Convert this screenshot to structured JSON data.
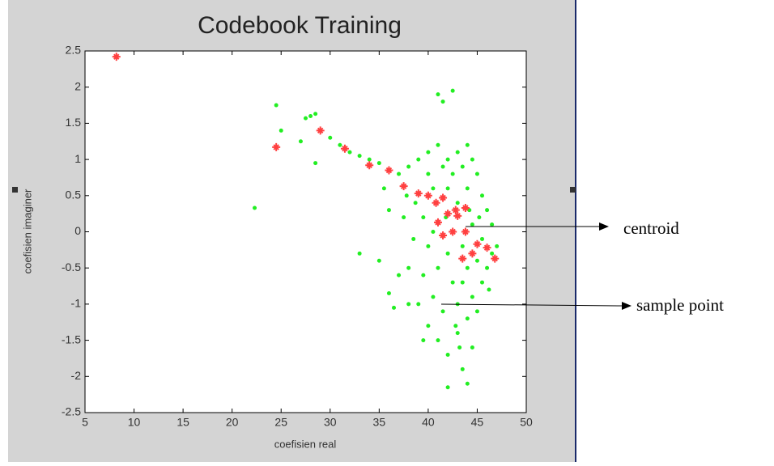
{
  "chart_data": {
    "type": "scatter",
    "title": "Codebook Training",
    "xlabel": "coefisien real",
    "ylabel": "coefisien imaginer",
    "xlim": [
      5,
      50
    ],
    "ylim": [
      -2.5,
      2.5
    ],
    "xticks": [
      5,
      10,
      15,
      20,
      25,
      30,
      35,
      40,
      45,
      50
    ],
    "yticks": [
      -2.5,
      -2,
      -1.5,
      -1,
      -0.5,
      0,
      0.5,
      1,
      1.5,
      2,
      2.5
    ],
    "series": [
      {
        "name": "sample point",
        "color": "#22ee22",
        "x": [
          24.5,
          25,
          22.3,
          27.5,
          28,
          28.5,
          27,
          28.5,
          30,
          31,
          32,
          33,
          34,
          35,
          35.5,
          36,
          37,
          37.5,
          35,
          33,
          36,
          37,
          38,
          38.5,
          38,
          39,
          39,
          39.5,
          39.5,
          40,
          40,
          40,
          40,
          40.5,
          40.5,
          41,
          41,
          41.5,
          41,
          41,
          41.5,
          41.5,
          42,
          42,
          42,
          42,
          42,
          42.5,
          42.5,
          42.5,
          43,
          43,
          43,
          43,
          43.5,
          43.5,
          43.5,
          43.5,
          44,
          44,
          44,
          44,
          44,
          44.5,
          44.5,
          44.5,
          44.5,
          45,
          45,
          45,
          45.5,
          45.5,
          45.5,
          46,
          46,
          46.5,
          46.5,
          47,
          39.5,
          38,
          36.5,
          42.8,
          43.2,
          40.5,
          41.8,
          44.2,
          45.2,
          38.7,
          37.8,
          46.2
        ],
        "y": [
          1.75,
          1.4,
          0.33,
          1.57,
          1.6,
          1.63,
          1.25,
          0.95,
          1.3,
          1.2,
          1.1,
          1.05,
          1.0,
          0.95,
          0.6,
          0.3,
          0.8,
          0.2,
          -0.4,
          -0.3,
          -0.85,
          -0.6,
          0.9,
          -0.1,
          -0.5,
          1.0,
          -1.0,
          0.2,
          -0.6,
          1.1,
          0.8,
          -0.2,
          -1.3,
          0.6,
          -0.9,
          1.2,
          1.9,
          1.8,
          -0.5,
          -1.5,
          0.9,
          -1.1,
          1.0,
          0.6,
          -0.3,
          -1.7,
          -2.15,
          1.95,
          0.8,
          -0.7,
          1.1,
          0.4,
          -1.0,
          -1.4,
          0.9,
          -0.2,
          -0.7,
          -1.9,
          1.2,
          0.6,
          -0.5,
          -1.2,
          -2.1,
          1.0,
          0.1,
          -0.9,
          -1.6,
          0.8,
          -0.4,
          -1.1,
          0.5,
          -0.1,
          -0.7,
          0.3,
          -0.5,
          0.1,
          -0.3,
          -0.2,
          -1.5,
          -1.0,
          -1.05,
          -1.3,
          -1.6,
          0.0,
          0.2,
          0.3,
          0.2,
          0.4,
          0.5,
          -0.8
        ]
      },
      {
        "name": "centroid",
        "color": "#ff4040",
        "x": [
          8.2,
          24.5,
          29,
          31.5,
          34,
          36,
          37.5,
          39,
          40,
          40.8,
          41.5,
          42,
          42.8,
          43.8,
          41,
          43,
          41.5,
          42.5,
          43.8,
          45,
          46,
          46.8,
          43.5,
          44.5
        ],
        "y": [
          2.42,
          1.17,
          1.4,
          1.15,
          0.92,
          0.85,
          0.63,
          0.53,
          0.5,
          0.4,
          0.47,
          0.25,
          0.3,
          0.33,
          0.13,
          0.22,
          -0.05,
          0,
          0,
          -0.17,
          -0.22,
          -0.37,
          -0.37,
          -0.3
        ]
      }
    ]
  }
}
